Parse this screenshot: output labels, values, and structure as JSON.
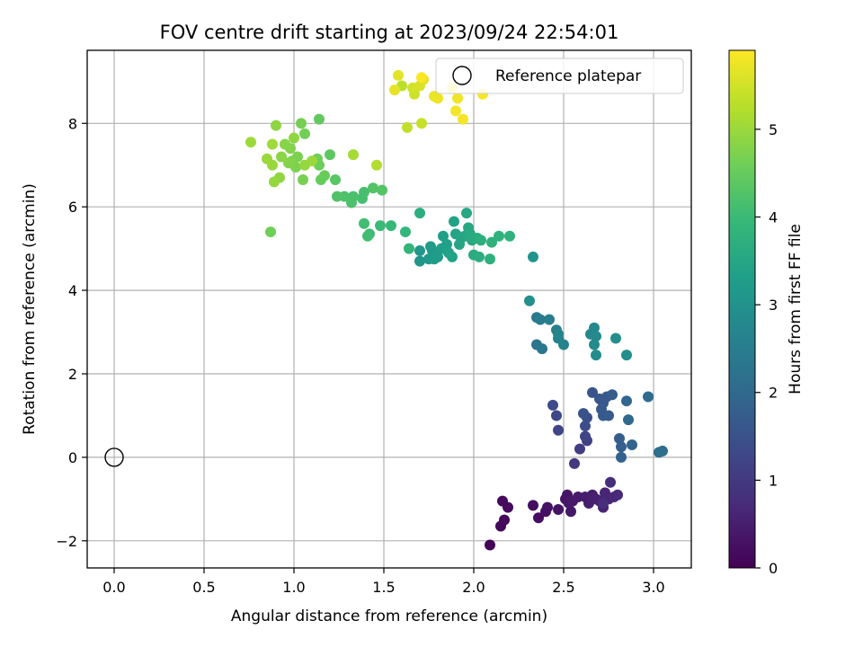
{
  "chart_data": {
    "type": "scatter",
    "title": "FOV centre drift starting at 2023/09/24 22:54:01",
    "xlabel": "Angular distance from reference (arcmin)",
    "ylabel": "Rotation from reference (arcmin)",
    "xlim": [
      -0.15,
      3.21
    ],
    "ylim": [
      -2.65,
      9.75
    ],
    "xticks": [
      "0.0",
      "0.5",
      "1.0",
      "1.5",
      "2.0",
      "2.5",
      "3.0"
    ],
    "xtick_values": [
      0,
      0.5,
      1.0,
      1.5,
      2.0,
      2.5,
      3.0
    ],
    "yticks": [
      "−2",
      "0",
      "2",
      "4",
      "6",
      "8"
    ],
    "ytick_values": [
      -2,
      0,
      2,
      4,
      6,
      8
    ],
    "grid": true,
    "legend": {
      "label": "Reference platepar",
      "position": "top-right"
    },
    "reference_point": {
      "x": 0,
      "y": 0
    },
    "colorbar": {
      "label": "Hours from first FF file",
      "range": [
        0,
        5.9
      ],
      "ticks": [
        "0",
        "1",
        "2",
        "3",
        "4",
        "5"
      ],
      "tick_values": [
        0,
        1,
        2,
        3,
        4,
        5
      ],
      "colormap": "viridis",
      "colors": [
        "#440154",
        "#482878",
        "#3e4989",
        "#31688e",
        "#26828e",
        "#1f9e89",
        "#35b779",
        "#6ece58",
        "#b5de2b",
        "#fde725"
      ]
    },
    "points": [
      [
        2.09,
        -2.1,
        0.05
      ],
      [
        2.15,
        -1.65,
        0.1
      ],
      [
        2.17,
        -1.5,
        0.12
      ],
      [
        2.16,
        -1.05,
        0.15
      ],
      [
        2.19,
        -1.2,
        0.18
      ],
      [
        2.33,
        -1.15,
        0.2
      ],
      [
        2.36,
        -1.45,
        0.22
      ],
      [
        2.4,
        -1.3,
        0.25
      ],
      [
        2.41,
        -1.2,
        0.28
      ],
      [
        2.47,
        -1.25,
        0.3
      ],
      [
        2.51,
        -1.0,
        0.32
      ],
      [
        2.52,
        -0.9,
        0.34
      ],
      [
        2.53,
        -1.1,
        0.36
      ],
      [
        2.54,
        -1.3,
        0.38
      ],
      [
        2.55,
        -1.05,
        0.4
      ],
      [
        2.58,
        -0.95,
        0.42
      ],
      [
        2.62,
        -0.95,
        0.45
      ],
      [
        2.64,
        -1.1,
        0.48
      ],
      [
        2.66,
        -0.9,
        0.5
      ],
      [
        2.68,
        -1.0,
        0.52
      ],
      [
        2.7,
        -1.05,
        0.55
      ],
      [
        2.72,
        -1.2,
        0.58
      ],
      [
        2.73,
        -0.85,
        0.6
      ],
      [
        2.75,
        -1.0,
        0.62
      ],
      [
        2.78,
        -0.95,
        0.65
      ],
      [
        2.8,
        -0.9,
        0.7
      ],
      [
        2.76,
        -0.6,
        0.75
      ],
      [
        2.72,
        -1.1,
        0.8
      ],
      [
        2.56,
        -0.15,
        1.0
      ],
      [
        2.59,
        0.2,
        1.1
      ],
      [
        2.63,
        0.4,
        1.15
      ],
      [
        2.62,
        0.5,
        1.2
      ],
      [
        2.47,
        0.65,
        1.25
      ],
      [
        2.46,
        1.0,
        1.3
      ],
      [
        2.44,
        1.25,
        1.35
      ],
      [
        2.62,
        0.75,
        1.4
      ],
      [
        2.63,
        0.95,
        1.45
      ],
      [
        2.61,
        1.05,
        1.5
      ],
      [
        2.66,
        1.55,
        1.55
      ],
      [
        2.7,
        1.4,
        1.6
      ],
      [
        2.72,
        1.3,
        1.62
      ],
      [
        2.74,
        1.45,
        1.64
      ],
      [
        2.71,
        1.15,
        1.66
      ],
      [
        2.72,
        1.0,
        1.68
      ],
      [
        2.75,
        1.0,
        1.7
      ],
      [
        2.77,
        1.5,
        1.72
      ],
      [
        2.81,
        0.45,
        1.75
      ],
      [
        2.82,
        0.25,
        1.8
      ],
      [
        2.82,
        0.0,
        1.85
      ],
      [
        2.88,
        0.3,
        1.9
      ],
      [
        2.85,
        1.35,
        1.95
      ],
      [
        2.86,
        0.9,
        2.0
      ],
      [
        2.97,
        1.45,
        2.05
      ],
      [
        3.03,
        0.12,
        2.1
      ],
      [
        3.05,
        0.15,
        2.15
      ],
      [
        2.35,
        2.7,
        2.3
      ],
      [
        2.38,
        2.6,
        2.35
      ],
      [
        2.35,
        3.35,
        2.4
      ],
      [
        2.37,
        3.3,
        2.45
      ],
      [
        2.42,
        3.3,
        2.5
      ],
      [
        2.46,
        3.05,
        2.55
      ],
      [
        2.47,
        2.85,
        2.6
      ],
      [
        2.5,
        2.7,
        2.65
      ],
      [
        2.47,
        2.95,
        2.7
      ],
      [
        2.65,
        2.95,
        2.75
      ],
      [
        2.67,
        3.1,
        2.78
      ],
      [
        2.68,
        2.9,
        2.8
      ],
      [
        2.67,
        2.7,
        2.82
      ],
      [
        2.68,
        2.45,
        2.85
      ],
      [
        2.79,
        2.85,
        2.88
      ],
      [
        2.85,
        2.45,
        2.9
      ],
      [
        2.31,
        3.75,
        2.95
      ],
      [
        2.33,
        4.8,
        3.05
      ],
      [
        1.7,
        4.7,
        3.1
      ],
      [
        1.7,
        4.95,
        3.12
      ],
      [
        1.75,
        4.75,
        3.15
      ],
      [
        1.77,
        4.95,
        3.18
      ],
      [
        1.76,
        5.05,
        3.2
      ],
      [
        1.78,
        4.75,
        3.22
      ],
      [
        1.8,
        4.8,
        3.25
      ],
      [
        1.82,
        5.0,
        3.28
      ],
      [
        1.83,
        5.3,
        3.3
      ],
      [
        1.85,
        5.1,
        3.32
      ],
      [
        1.86,
        4.9,
        3.35
      ],
      [
        1.88,
        4.8,
        3.38
      ],
      [
        1.89,
        5.65,
        3.4
      ],
      [
        1.9,
        5.35,
        3.42
      ],
      [
        1.92,
        5.1,
        3.45
      ],
      [
        1.93,
        5.25,
        3.48
      ],
      [
        1.95,
        5.3,
        3.5
      ],
      [
        1.96,
        5.85,
        3.52
      ],
      [
        1.97,
        5.5,
        3.55
      ],
      [
        1.98,
        5.35,
        3.58
      ],
      [
        1.99,
        5.2,
        3.6
      ],
      [
        2.0,
        4.85,
        3.62
      ],
      [
        2.02,
        5.25,
        3.65
      ],
      [
        2.03,
        4.8,
        3.68
      ],
      [
        2.04,
        5.2,
        3.7
      ],
      [
        2.09,
        4.75,
        3.72
      ],
      [
        2.1,
        5.15,
        3.75
      ],
      [
        2.14,
        5.3,
        3.78
      ],
      [
        2.2,
        5.3,
        3.8
      ],
      [
        1.64,
        5.0,
        3.85
      ],
      [
        1.62,
        5.4,
        3.9
      ],
      [
        1.7,
        5.85,
        3.7
      ],
      [
        1.54,
        5.55,
        3.95
      ],
      [
        1.48,
        5.55,
        4.0
      ],
      [
        1.42,
        5.35,
        4.05
      ],
      [
        1.41,
        5.3,
        4.08
      ],
      [
        1.39,
        5.6,
        4.1
      ],
      [
        1.38,
        6.2,
        4.12
      ],
      [
        1.39,
        6.35,
        4.15
      ],
      [
        1.33,
        6.25,
        4.18
      ],
      [
        1.32,
        6.1,
        4.2
      ],
      [
        1.28,
        6.25,
        4.22
      ],
      [
        1.24,
        6.25,
        4.25
      ],
      [
        1.44,
        6.45,
        4.28
      ],
      [
        1.49,
        6.4,
        4.3
      ],
      [
        1.23,
        6.65,
        4.35
      ],
      [
        1.2,
        7.25,
        4.4
      ],
      [
        1.14,
        8.1,
        4.45
      ],
      [
        1.15,
        6.65,
        4.5
      ],
      [
        1.17,
        6.75,
        4.52
      ],
      [
        1.14,
        7.0,
        4.55
      ],
      [
        1.13,
        7.15,
        4.6
      ],
      [
        1.06,
        7.75,
        4.62
      ],
      [
        1.04,
        8.0,
        4.65
      ],
      [
        1.05,
        6.65,
        4.68
      ],
      [
        1.02,
        7.2,
        4.7
      ],
      [
        1.01,
        6.95,
        4.72
      ],
      [
        0.99,
        7.1,
        4.75
      ],
      [
        0.98,
        7.4,
        4.78
      ],
      [
        0.97,
        7.05,
        4.8
      ],
      [
        0.95,
        7.5,
        4.82
      ],
      [
        0.93,
        7.2,
        4.85
      ],
      [
        0.9,
        7.95,
        4.88
      ],
      [
        0.92,
        6.7,
        4.9
      ],
      [
        0.89,
        6.6,
        4.95
      ],
      [
        0.88,
        7.0,
        4.98
      ],
      [
        0.85,
        7.15,
        5.0
      ],
      [
        0.76,
        7.55,
        5.02
      ],
      [
        0.88,
        7.5,
        5.05
      ],
      [
        0.87,
        5.4,
        4.6
      ],
      [
        1.0,
        7.65,
        4.9
      ],
      [
        1.06,
        7.0,
        4.95
      ],
      [
        1.1,
        7.1,
        5.0
      ],
      [
        1.33,
        7.25,
        5.1
      ],
      [
        1.46,
        7.0,
        5.2
      ],
      [
        1.6,
        8.9,
        5.3
      ],
      [
        1.63,
        7.9,
        5.35
      ],
      [
        1.71,
        8.0,
        5.4
      ],
      [
        1.67,
        8.7,
        5.45
      ],
      [
        1.66,
        8.85,
        5.5
      ],
      [
        1.7,
        8.9,
        5.55
      ],
      [
        1.72,
        9.05,
        5.6
      ],
      [
        1.58,
        9.15,
        5.65
      ],
      [
        1.56,
        8.8,
        5.7
      ],
      [
        1.78,
        8.65,
        5.72
      ],
      [
        1.8,
        8.6,
        5.74
      ],
      [
        1.88,
        8.85,
        5.76
      ],
      [
        1.91,
        8.6,
        5.78
      ],
      [
        1.9,
        8.3,
        5.8
      ],
      [
        1.94,
        8.1,
        5.82
      ],
      [
        2.05,
        8.7,
        5.85
      ],
      [
        1.71,
        9.1,
        5.88
      ]
    ]
  }
}
